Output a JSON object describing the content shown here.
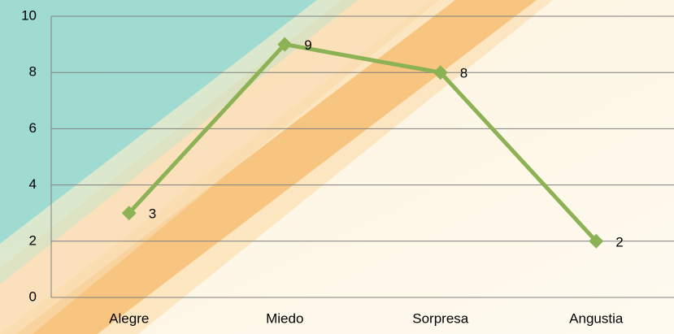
{
  "chart_data": {
    "type": "line",
    "categories": [
      "Alegre",
      "Miedo",
      "Sorpresa",
      "Angustia"
    ],
    "series": [
      {
        "color": "#8db255",
        "values": [
          3,
          9,
          8,
          2
        ]
      }
    ],
    "ylim": [
      0,
      10
    ],
    "yticks": [
      0,
      2,
      4,
      6,
      8,
      10
    ],
    "grid": true,
    "data_labels": true
  }
}
